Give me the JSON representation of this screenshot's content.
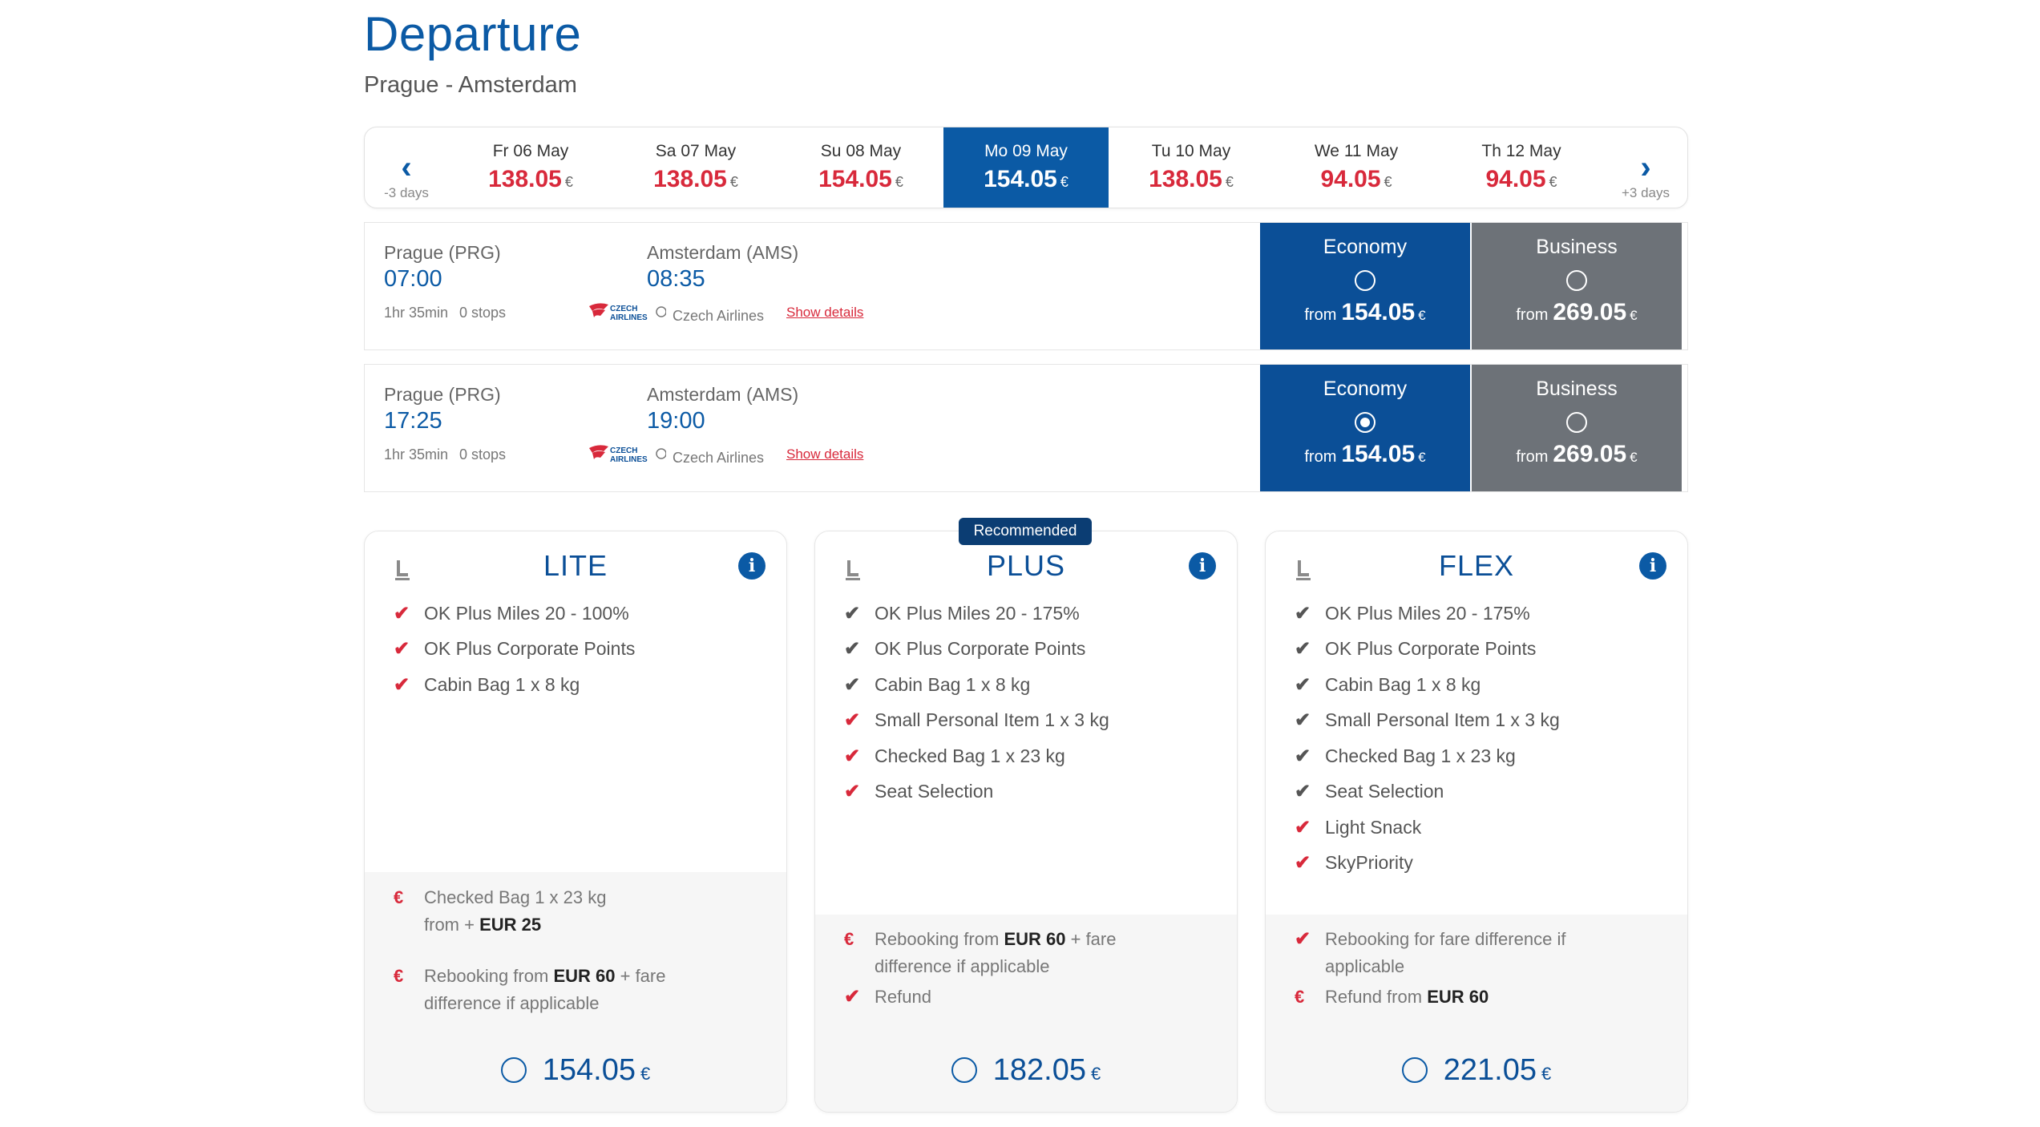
{
  "header": {
    "title": "Departure",
    "route": "Prague - Amsterdam"
  },
  "date_nav": {
    "prev_label": "-3 days",
    "next_label": "+3 days",
    "currency": "€",
    "days": [
      {
        "label": "Fr 06 May",
        "price": "138.05",
        "selected": false
      },
      {
        "label": "Sa 07 May",
        "price": "138.05",
        "selected": false
      },
      {
        "label": "Su 08 May",
        "price": "154.05",
        "selected": false
      },
      {
        "label": "Mo 09 May",
        "price": "154.05",
        "selected": true
      },
      {
        "label": "Tu 10 May",
        "price": "138.05",
        "selected": false
      },
      {
        "label": "We 11 May",
        "price": "94.05",
        "selected": false
      },
      {
        "label": "Th 12 May",
        "price": "94.05",
        "selected": false
      }
    ]
  },
  "flights": [
    {
      "from_city": "Prague (PRG)",
      "from_time": "07:00",
      "to_city": "Amsterdam (AMS)",
      "to_time": "08:35",
      "duration": "1hr 35min",
      "stops": "0 stops",
      "airline": "Czech Airlines",
      "details_label": "Show details",
      "economy": {
        "title": "Economy",
        "from": "from",
        "price": "154.05",
        "currency": "€",
        "selected": false
      },
      "business": {
        "title": "Business",
        "from": "from",
        "price": "269.05",
        "currency": "€",
        "selected": false
      }
    },
    {
      "from_city": "Prague (PRG)",
      "from_time": "17:25",
      "to_city": "Amsterdam (AMS)",
      "to_time": "19:00",
      "duration": "1hr 35min",
      "stops": "0 stops",
      "airline": "Czech Airlines",
      "details_label": "Show details",
      "economy": {
        "title": "Economy",
        "from": "from",
        "price": "154.05",
        "currency": "€",
        "selected": true
      },
      "business": {
        "title": "Business",
        "from": "from",
        "price": "269.05",
        "currency": "€",
        "selected": false
      }
    }
  ],
  "recommended_label": "Recommended",
  "fares": [
    {
      "name": "LITE",
      "features": [
        {
          "text": "OK Plus Miles 20 - 100%",
          "color": "red"
        },
        {
          "text": "OK Plus Corporate Points",
          "color": "red"
        },
        {
          "text": "Cabin Bag 1 x 8 kg",
          "color": "red"
        }
      ],
      "extras_a": {
        "line1": "Checked Bag 1 x 23 kg",
        "line2_pre": "from +",
        "line2_bold": "EUR 25"
      },
      "extras_b": {
        "pre": "Rebooking from",
        "bold": "EUR 60",
        "post": "+ fare",
        "line2": "difference if applicable"
      },
      "price": "154.05",
      "currency": "€"
    },
    {
      "name": "PLUS",
      "features": [
        {
          "text": "OK Plus Miles 20 - 175%",
          "color": "grey"
        },
        {
          "text": "OK Plus Corporate Points",
          "color": "grey"
        },
        {
          "text": "Cabin Bag 1 x 8 kg",
          "color": "grey"
        },
        {
          "text": "Small Personal Item 1 x 3 kg",
          "color": "red"
        },
        {
          "text": "Checked Bag 1 x 23 kg",
          "color": "red"
        },
        {
          "text": "Seat Selection",
          "color": "red"
        }
      ],
      "extras_a": {
        "pre": "Rebooking from",
        "bold": "EUR 60",
        "post": "+ fare",
        "line2": "difference if applicable"
      },
      "extras_b": {
        "text": "Refund"
      },
      "price": "182.05",
      "currency": "€"
    },
    {
      "name": "FLEX",
      "features": [
        {
          "text": "OK Plus Miles 20 - 175%",
          "color": "grey"
        },
        {
          "text": "OK Plus Corporate Points",
          "color": "grey"
        },
        {
          "text": "Cabin Bag 1 x 8 kg",
          "color": "grey"
        },
        {
          "text": "Small Personal Item 1 x 3 kg",
          "color": "grey"
        },
        {
          "text": "Checked Bag 1 x 23 kg",
          "color": "grey"
        },
        {
          "text": "Seat Selection",
          "color": "grey"
        },
        {
          "text": "Light Snack",
          "color": "red"
        },
        {
          "text": "SkyPriority",
          "color": "red"
        }
      ],
      "extras_a": {
        "line1": "Rebooking for fare difference if",
        "line2": "applicable"
      },
      "extras_b": {
        "pre": "Refund from",
        "bold": "EUR 60"
      },
      "price": "221.05",
      "currency": "€"
    }
  ]
}
